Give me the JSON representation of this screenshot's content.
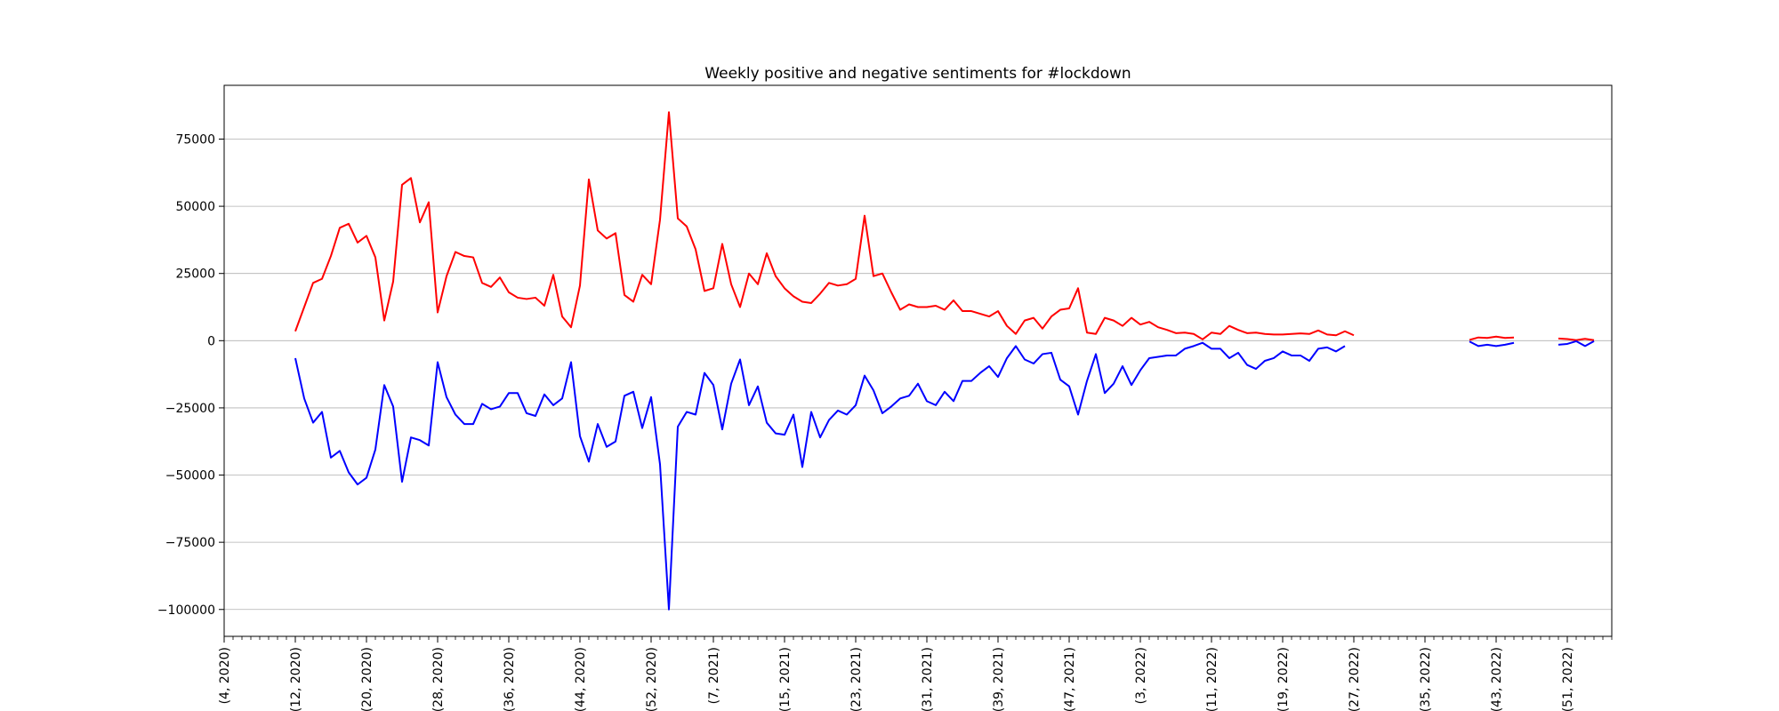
{
  "chart_data": {
    "type": "line",
    "title": "Weekly positive and negative sentiments for #lockdown",
    "xlabel": "",
    "ylabel": "",
    "ylim": [
      -110000,
      95000
    ],
    "xlim": [
      4,
      160
    ],
    "grid": "horizontal",
    "yticks": [
      75000,
      50000,
      25000,
      0,
      -25000,
      -50000,
      -75000,
      -100000
    ],
    "ytick_labels": [
      "75000",
      "50000",
      "25000",
      "0",
      "−25000",
      "−50000",
      "−75000",
      "−100000"
    ],
    "xticks": [
      4,
      12,
      20,
      28,
      36,
      44,
      52,
      59,
      67,
      75,
      83,
      91,
      99,
      107,
      115,
      123,
      131,
      139,
      147,
      155,
      163
    ],
    "xtick_labels": [
      "(4, 2020)",
      "(12, 2020)",
      "(20, 2020)",
      "(28, 2020)",
      "(36, 2020)",
      "(44, 2020)",
      "(52, 2020)",
      "(7, 2021)",
      "(15, 2021)",
      "(23, 2021)",
      "(31, 2021)",
      "(39, 2021)",
      "(47, 2021)",
      "(3, 2022)",
      "(11, 2022)",
      "(19, 2022)",
      "(27, 2022)",
      "(35, 2022)",
      "(43, 2022)",
      "(51, 2022)"
    ],
    "series": [
      {
        "color": "#ff0000",
        "segments": [
          {
            "x_start": 12,
            "values": [
              3500,
              12500,
              21500,
              23000,
              31500,
              42000,
              43500,
              36500,
              39000,
              31000,
              7500,
              22000,
              58000,
              60500,
              44000,
              51500,
              10500,
              24000,
              33000,
              31500,
              31000,
              21500,
              20000,
              23500,
              18000,
              16000,
              15500,
              16000,
              13000,
              24500,
              9000,
              5000,
              20500,
              60000,
              41000,
              38000,
              40000,
              17000,
              14500,
              24500,
              21000,
              45000,
              85000,
              45500,
              42500,
              34000,
              18500,
              19500,
              36000,
              21000,
              12500,
              25000,
              21000,
              32500,
              24000,
              19500,
              16500,
              14500,
              14000,
              17500,
              21500,
              20500,
              21000,
              23000,
              46500,
              24000,
              25000,
              18000,
              11500,
              13500,
              12500,
              12500,
              13000,
              11500,
              15000,
              11000,
              11000,
              10000,
              9000,
              11000,
              5500,
              2500,
              7500,
              8500,
              4500,
              9000,
              11500,
              12000,
              19500,
              3000,
              2500,
              8500,
              7500,
              5500,
              8500,
              6000,
              7000,
              5000,
              4000,
              2800,
              3000,
              2500,
              500,
              3000,
              2500,
              5500,
              4000,
              2800,
              3000,
              2500,
              2300,
              2300,
              2500,
              2700,
              2500,
              3800,
              2300,
              2000,
              3500,
              2000
            ]
          },
          {
            "x_start": 144,
            "values": [
              300,
              1200,
              1000,
              1500,
              1000,
              1200
            ]
          },
          {
            "x_start": 154,
            "values": [
              800,
              600,
              200,
              700,
              200
            ]
          }
        ]
      },
      {
        "color": "#0000ff",
        "segments": [
          {
            "x_start": 12,
            "values": [
              -6500,
              -21500,
              -30500,
              -26500,
              -43500,
              -41000,
              -49000,
              -53500,
              -51000,
              -40500,
              -16500,
              -24500,
              -52500,
              -36000,
              -37000,
              -39000,
              -8000,
              -21000,
              -27500,
              -31000,
              -31000,
              -23500,
              -25500,
              -24500,
              -19500,
              -19500,
              -27000,
              -28000,
              -20000,
              -24000,
              -21500,
              -8000,
              -35500,
              -45000,
              -31000,
              -39500,
              -37500,
              -20500,
              -19000,
              -32500,
              -21000,
              -46000,
              -100000,
              -32000,
              -26500,
              -27500,
              -12000,
              -16500,
              -33000,
              -16000,
              -7000,
              -24000,
              -17000,
              -30500,
              -34500,
              -35000,
              -27500,
              -47000,
              -26500,
              -36000,
              -29500,
              -26000,
              -27500,
              -24000,
              -13000,
              -18500,
              -27000,
              -24500,
              -21500,
              -20500,
              -16000,
              -22500,
              -24000,
              -19000,
              -22500,
              -15000,
              -15000,
              -12000,
              -9500,
              -13500,
              -6500,
              -2000,
              -7000,
              -8500,
              -5000,
              -4500,
              -14500,
              -17000,
              -27500,
              -15000,
              -5000,
              -19500,
              -16000,
              -9500,
              -16500,
              -11000,
              -6500,
              -6000,
              -5500,
              -5500,
              -3000,
              -2000,
              -800,
              -3000,
              -3000,
              -6500,
              -4500,
              -9000,
              -10500,
              -7500,
              -6500,
              -4000,
              -5500,
              -5500,
              -7500,
              -3000,
              -2500,
              -4000,
              -2000
            ]
          },
          {
            "x_start": 144,
            "values": [
              -300,
              -2000,
              -1500,
              -2000,
              -1500,
              -800
            ]
          },
          {
            "x_start": 154,
            "values": [
              -1500,
              -1200,
              -200,
              -2000,
              -200
            ]
          }
        ]
      }
    ]
  }
}
